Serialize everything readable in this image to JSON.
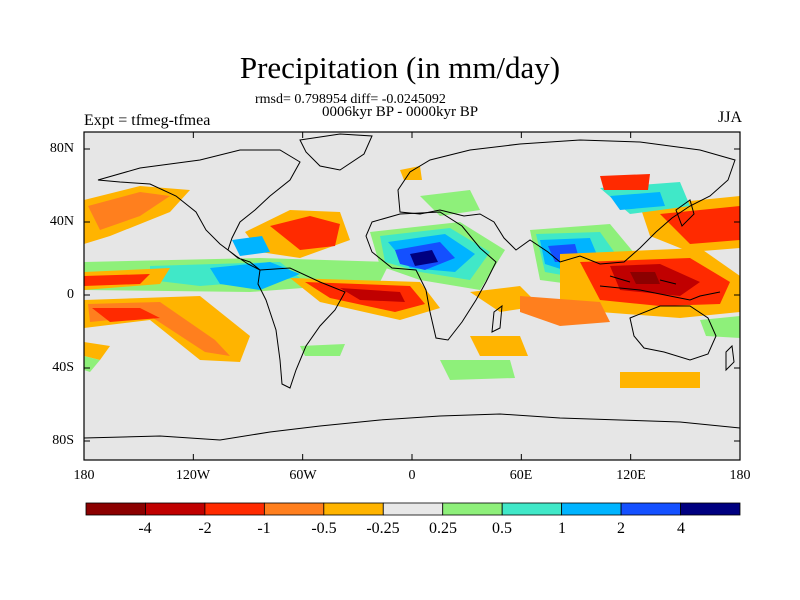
{
  "title": "Precipitation (in mm/day)",
  "stats": "rmsd= 0.798954 diff= -0.0245092",
  "period": "0006kyr BP - 0000kyr BP",
  "experiment": "Expt = tfmeg-tfmea",
  "season": "JJA",
  "lat_ticks": [
    "80N",
    "40N",
    "0",
    "40S",
    "80S"
  ],
  "lon_ticks": [
    "180",
    "120W",
    "60W",
    "0",
    "60E",
    "120E",
    "180"
  ],
  "colorbar": {
    "labels": [
      "-4",
      "-2",
      "-1",
      "-0.5",
      "-0.25",
      "0.25",
      "0.5",
      "1",
      "2",
      "4"
    ],
    "colors": [
      "#8b0000",
      "#c00000",
      "#ff2a00",
      "#ff7f1e",
      "#ffb400",
      "#e8e8e8",
      "#8ef07a",
      "#40e8c8",
      "#00b4ff",
      "#1450ff",
      "#000080"
    ]
  },
  "map_background": "#e6e6e6"
}
